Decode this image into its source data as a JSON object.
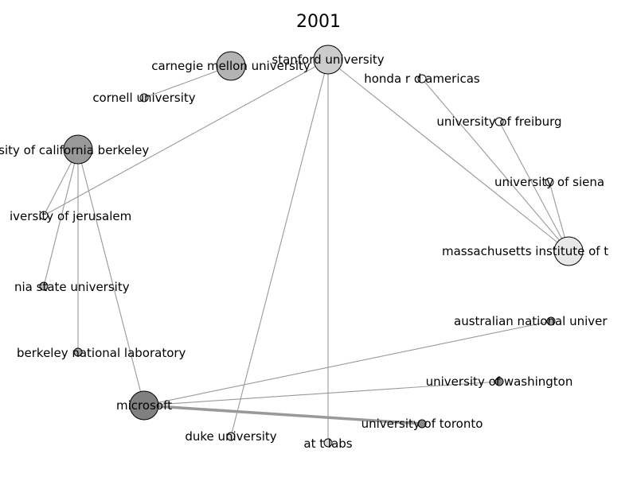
{
  "title": "2001",
  "colors": {
    "edge": "#999999",
    "node_stroke": "#000000",
    "background": "#ffffff"
  },
  "nodes": [
    {
      "id": "carnegie",
      "label": "carnegie mellon university",
      "size": "large",
      "fill": "#b3b3b3"
    },
    {
      "id": "stanford",
      "label": "stanford university",
      "size": "large",
      "fill": "#cccccc"
    },
    {
      "id": "honda",
      "label": "honda r d americas",
      "size": "small",
      "fill": "#ffffff"
    },
    {
      "id": "cornell",
      "label": "cornell university",
      "size": "small",
      "fill": "#dddddd"
    },
    {
      "id": "berkeley",
      "label": "rsity of california berkeley",
      "size": "large",
      "fill": "#999999"
    },
    {
      "id": "freiburg",
      "label": "university of freiburg",
      "size": "small",
      "fill": "#ffffff"
    },
    {
      "id": "siena",
      "label": "university of siena",
      "size": "small",
      "fill": "#ffffff"
    },
    {
      "id": "jerusalem",
      "label": "iversity of jerusalem",
      "size": "small",
      "fill": "#ffffff"
    },
    {
      "id": "mit",
      "label": "massachusetts institute of t",
      "size": "large",
      "fill": "#e8e8e8"
    },
    {
      "id": "nia_state",
      "label": "nia state university",
      "size": "small",
      "fill": "#bbbbbb"
    },
    {
      "id": "anu",
      "label": "australian national univer",
      "size": "small",
      "fill": "#aaaaaa"
    },
    {
      "id": "lbnl",
      "label": "berkeley national laboratory",
      "size": "small",
      "fill": "#aaaaaa"
    },
    {
      "id": "washington",
      "label": "university of washington",
      "size": "small",
      "fill": "#888888"
    },
    {
      "id": "microsoft",
      "label": "microsoft",
      "size": "large",
      "fill": "#808080"
    },
    {
      "id": "toronto",
      "label": "university of toronto",
      "size": "small",
      "fill": "#888888"
    },
    {
      "id": "duke",
      "label": "duke university",
      "size": "small",
      "fill": "#dddddd"
    },
    {
      "id": "att",
      "label": "at t labs",
      "size": "small",
      "fill": "#dddddd"
    }
  ],
  "edges": [
    {
      "source": "carnegie",
      "target": "cornell",
      "weight": 1
    },
    {
      "source": "stanford",
      "target": "jerusalem",
      "weight": 1
    },
    {
      "source": "stanford",
      "target": "duke",
      "weight": 1
    },
    {
      "source": "stanford",
      "target": "att",
      "weight": 1
    },
    {
      "source": "stanford",
      "target": "mit",
      "weight": 1
    },
    {
      "source": "honda",
      "target": "mit",
      "weight": 1
    },
    {
      "source": "freiburg",
      "target": "mit",
      "weight": 1
    },
    {
      "source": "siena",
      "target": "mit",
      "weight": 1
    },
    {
      "source": "berkeley",
      "target": "jerusalem",
      "weight": 1
    },
    {
      "source": "berkeley",
      "target": "nia_state",
      "weight": 1
    },
    {
      "source": "berkeley",
      "target": "lbnl",
      "weight": 1
    },
    {
      "source": "berkeley",
      "target": "microsoft",
      "weight": 1
    },
    {
      "source": "microsoft",
      "target": "anu",
      "weight": 1
    },
    {
      "source": "microsoft",
      "target": "washington",
      "weight": 1
    },
    {
      "source": "microsoft",
      "target": "toronto",
      "weight": 3
    }
  ]
}
